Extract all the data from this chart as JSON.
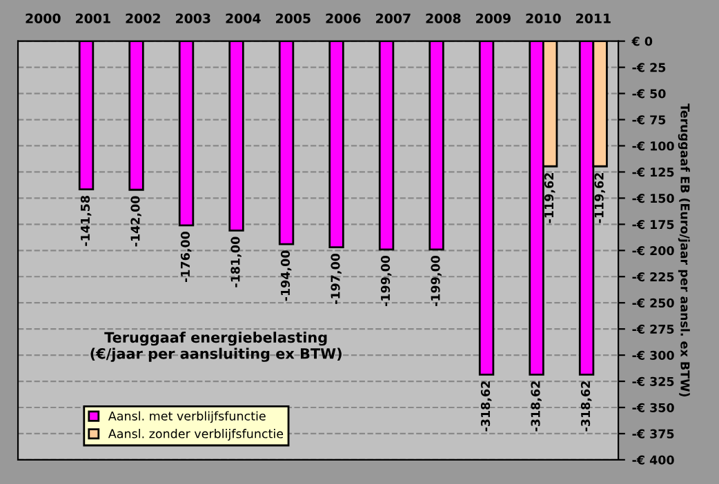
{
  "chart_data": {
    "type": "bar",
    "title": "Teruggaaf energiebelasting\n(€/jaar per aansluiting ex BTW)",
    "ylabel": "Teruggaaf EB (Euro/jaar per aansl. ex BTW)",
    "categories": [
      "2000",
      "2001",
      "2002",
      "2003",
      "2004",
      "2005",
      "2006",
      "2007",
      "2008",
      "2009",
      "2010",
      "2011"
    ],
    "series": [
      {
        "name": "Aansl. met verblijfsfunctie",
        "color": "#ff00ff",
        "values": [
          null,
          -141.58,
          -142,
          -176,
          -181,
          -194,
          -197,
          -199,
          -199,
          -318.62,
          -318.62,
          -318.62
        ],
        "value_labels": [
          null,
          "-141,58",
          "-142,00",
          "-176,00",
          "-181,00",
          "-194,00",
          "-197,00",
          "-199,00",
          "-199,00",
          "-318,62",
          "-318,62",
          "-318,62"
        ]
      },
      {
        "name": "Aansl. zonder verblijfsfunctie",
        "color": "#ffcc99",
        "values": [
          null,
          null,
          null,
          null,
          null,
          null,
          null,
          null,
          null,
          null,
          -119.62,
          -119.62
        ],
        "value_labels": [
          null,
          null,
          null,
          null,
          null,
          null,
          null,
          null,
          null,
          null,
          "-119,62",
          "-119,62"
        ]
      }
    ],
    "ylim": [
      -400,
      0
    ],
    "yticks": [
      {
        "value": 0,
        "label": "€ 0"
      },
      {
        "value": -25,
        "label": "-€ 25"
      },
      {
        "value": -50,
        "label": "-€ 50"
      },
      {
        "value": -75,
        "label": "-€ 75"
      },
      {
        "value": -100,
        "label": "-€ 100"
      },
      {
        "value": -125,
        "label": "-€ 125"
      },
      {
        "value": -150,
        "label": "-€ 150"
      },
      {
        "value": -175,
        "label": "-€ 175"
      },
      {
        "value": -200,
        "label": "-€ 200"
      },
      {
        "value": -225,
        "label": "-€ 225"
      },
      {
        "value": -250,
        "label": "-€ 250"
      },
      {
        "value": -275,
        "label": "-€ 275"
      },
      {
        "value": -300,
        "label": "-€ 300"
      },
      {
        "value": -325,
        "label": "-€ 325"
      },
      {
        "value": -350,
        "label": "-€ 350"
      },
      {
        "value": -375,
        "label": "-€ 375"
      },
      {
        "value": -400,
        "label": "-€ 400"
      }
    ],
    "grid": "y",
    "legend": "bottom left"
  }
}
